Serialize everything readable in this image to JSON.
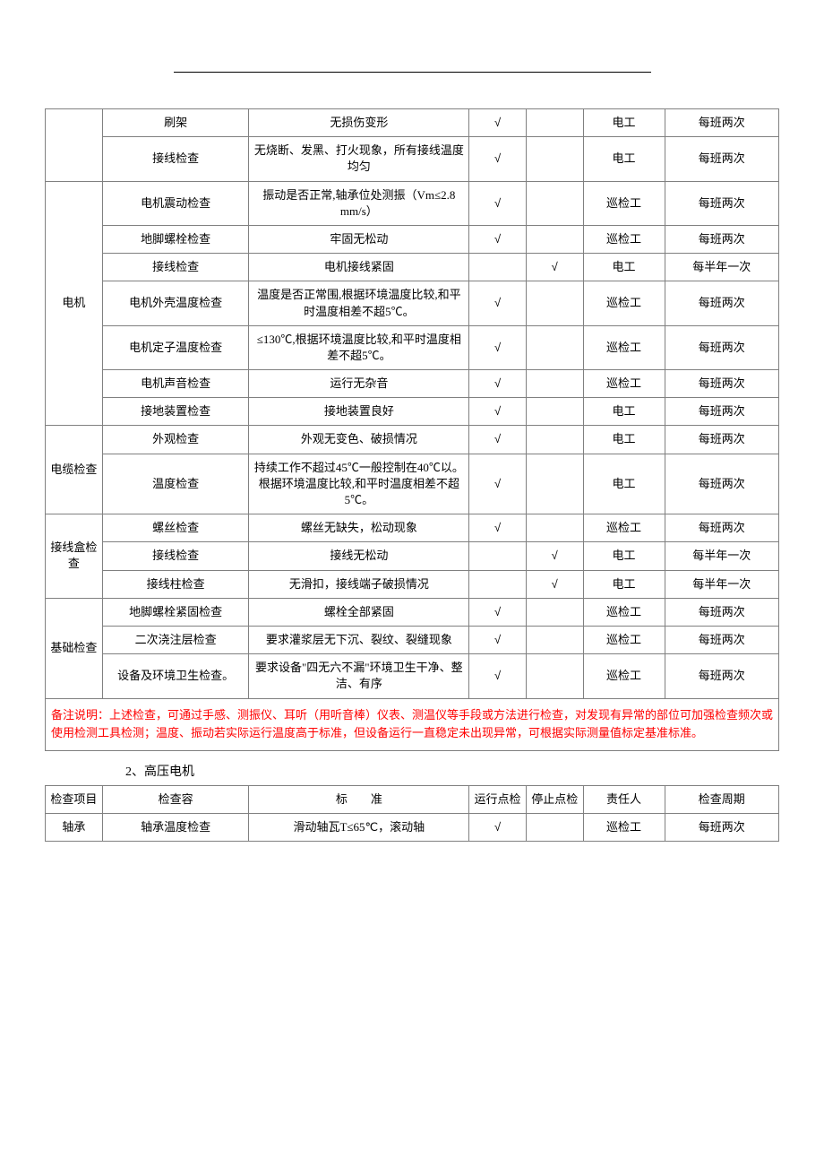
{
  "table1": {
    "rows": [
      {
        "cat": "",
        "catRowspan": 0,
        "item": "刷架",
        "standard": "无损伤变形",
        "run": "√",
        "stop": "",
        "resp": "电工",
        "cycle": "每班两次"
      },
      {
        "cat": "",
        "catRowspan": 0,
        "item": "接线检查",
        "standard": "无烧断、发黑、打火现象，所有接线温度均匀",
        "run": "√",
        "stop": "",
        "resp": "电工",
        "cycle": "每班两次"
      },
      {
        "cat": "电机",
        "catRowspan": 7,
        "item": "电机震动检查",
        "standard": "振动是否正常,轴承位处测振（Vm≤2.8 mm/s）",
        "run": "√",
        "stop": "",
        "resp": "巡检工",
        "cycle": "每班两次"
      },
      {
        "cat": "",
        "catRowspan": 0,
        "item": "地脚螺栓检查",
        "standard": "牢固无松动",
        "run": "√",
        "stop": "",
        "resp": "巡检工",
        "cycle": "每班两次"
      },
      {
        "cat": "",
        "catRowspan": 0,
        "item": "接线检查",
        "standard": "电机接线紧固",
        "run": "",
        "stop": "√",
        "resp": "电工",
        "cycle": "每半年一次"
      },
      {
        "cat": "",
        "catRowspan": 0,
        "item": "电机外壳温度检查",
        "standard": "温度是否正常围,根据环境温度比较,和平时温度相差不超5℃。",
        "run": "√",
        "stop": "",
        "resp": "巡检工",
        "cycle": "每班两次"
      },
      {
        "cat": "",
        "catRowspan": 0,
        "item": "电机定子温度检查",
        "standard": "≤130℃,根据环境温度比较,和平时温度相差不超5℃。",
        "run": "√",
        "stop": "",
        "resp": "巡检工",
        "cycle": "每班两次"
      },
      {
        "cat": "",
        "catRowspan": 0,
        "item": "电机声音检查",
        "standard": "运行无杂音",
        "run": "√",
        "stop": "",
        "resp": "巡检工",
        "cycle": "每班两次"
      },
      {
        "cat": "",
        "catRowspan": 0,
        "item": "接地装置检查",
        "standard": "接地装置良好",
        "run": "√",
        "stop": "",
        "resp": "电工",
        "cycle": "每班两次"
      },
      {
        "cat": "电缆检查",
        "catRowspan": 2,
        "item": "外观检查",
        "standard": "外观无变色、破损情况",
        "run": "√",
        "stop": "",
        "resp": "电工",
        "cycle": "每班两次"
      },
      {
        "cat": "",
        "catRowspan": 0,
        "item": "温度检查",
        "standard": "持续工作不超过45℃一般控制在40℃以。根据环境温度比较,和平时温度相差不超5℃。",
        "run": "√",
        "stop": "",
        "resp": "电工",
        "cycle": "每班两次"
      },
      {
        "cat": "接线盒检查",
        "catRowspan": 3,
        "item": "螺丝检查",
        "standard": "螺丝无缺失，松动现象",
        "run": "√",
        "stop": "",
        "resp": "巡检工",
        "cycle": "每班两次"
      },
      {
        "cat": "",
        "catRowspan": 0,
        "item": "接线检查",
        "standard": "接线无松动",
        "run": "",
        "stop": "√",
        "resp": "电工",
        "cycle": "每半年一次"
      },
      {
        "cat": "",
        "catRowspan": 0,
        "item": "接线柱检查",
        "standard": "无滑扣，接线端子破损情况",
        "run": "",
        "stop": "√",
        "resp": "电工",
        "cycle": "每半年一次"
      },
      {
        "cat": "基础检查",
        "catRowspan": 3,
        "item": "地脚螺栓紧固检查",
        "standard": "螺栓全部紧固",
        "run": "√",
        "stop": "",
        "resp": "巡检工",
        "cycle": "每班两次"
      },
      {
        "cat": "",
        "catRowspan": 0,
        "item": "二次浇注层检查",
        "standard": "要求灌浆层无下沉、裂纹、裂缝现象",
        "run": "√",
        "stop": "",
        "resp": "巡检工",
        "cycle": "每班两次"
      },
      {
        "cat": "",
        "catRowspan": 0,
        "item": "设备及环境卫生检查。",
        "standard": "要求设备\"四无六不漏\"环境卫生干净、整洁、有序",
        "run": "√",
        "stop": "",
        "resp": "巡检工",
        "cycle": "每班两次"
      }
    ],
    "note": "备注说明：上述检查，可通过手感、测振仪、耳听（用听音棒）仪表、测温仪等手段或方法进行检查，对发现有异常的部位可加强检查频次或使用检测工具检测；温度、振动若实际运行温度高于标准，但设备运行一直稳定未出现异常，可根据实际测量值标定基准标准。"
  },
  "section2": {
    "title": "2、高压电机",
    "header": {
      "col1": "检查项目",
      "col2": "检查容",
      "col3": "标　　准",
      "col4": "运行点检",
      "col5": "停止点检",
      "col6": "责任人",
      "col7": "检查周期"
    },
    "rows": [
      {
        "cat": "轴承",
        "item": "轴承温度检查",
        "standard": "滑动轴瓦T≤65℃，滚动轴",
        "run": "√",
        "stop": "",
        "resp": "巡检工",
        "cycle": "每班两次"
      }
    ]
  }
}
